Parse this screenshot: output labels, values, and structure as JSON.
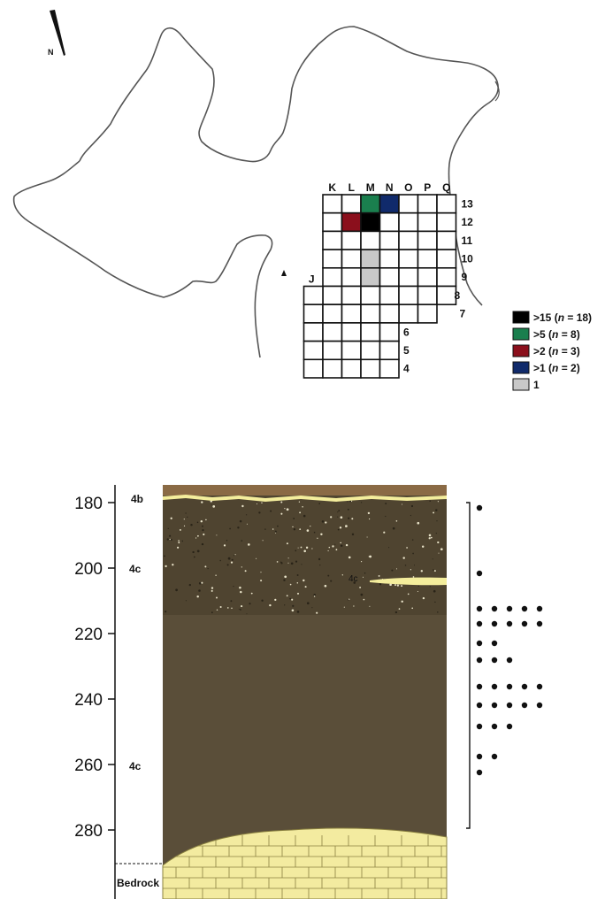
{
  "north": {
    "label": "N"
  },
  "grid": {
    "columns": [
      "K",
      "L",
      "M",
      "N",
      "O",
      "P",
      "Q"
    ],
    "extra_column": "J",
    "rows": [
      "13",
      "12",
      "11",
      "10",
      "9",
      "8",
      "7",
      "6",
      "5",
      "4"
    ],
    "shaded_cells": [
      {
        "col": "M",
        "row": "13",
        "class": ">5"
      },
      {
        "col": "N",
        "row": "13",
        "class": ">1"
      },
      {
        "col": "L",
        "row": "12",
        "class": ">2"
      },
      {
        "col": "M",
        "row": "12",
        "class": ">15"
      },
      {
        "col": "M",
        "row": "10",
        "class": "1"
      },
      {
        "col": "M",
        "row": "9",
        "class": "1"
      }
    ]
  },
  "legend": [
    {
      "label": ">15 (",
      "n": "n",
      "rest": " = 18)",
      "color": "#000000"
    },
    {
      "label": ">5 (",
      "n": "n",
      "rest": " = 8)",
      "color": "#1a7f4e"
    },
    {
      "label": ">2 (",
      "n": "n",
      "rest": " = 3)",
      "color": "#8b0f1c"
    },
    {
      "label": ">1 (",
      "n": "n",
      "rest": " = 2)",
      "color": "#102a6b"
    },
    {
      "label": "1",
      "n": "",
      "rest": "",
      "color": "#c8c8c8"
    }
  ],
  "profile": {
    "depth_ticks": [
      "180",
      "200",
      "220",
      "240",
      "260",
      "280"
    ],
    "layers": {
      "top": "4b",
      "upper": "4c",
      "lens": "4c",
      "lower": "4c",
      "base": "Bedrock"
    },
    "colors": {
      "top_soil": "#8a6a45",
      "dark_fill": "#5a4e39",
      "bedrock": "#f3eba0",
      "lens": "#f4ed9c"
    },
    "find_dots_per_row": [
      1,
      1,
      5,
      5,
      2,
      3,
      5,
      5,
      3,
      2,
      1
    ]
  }
}
